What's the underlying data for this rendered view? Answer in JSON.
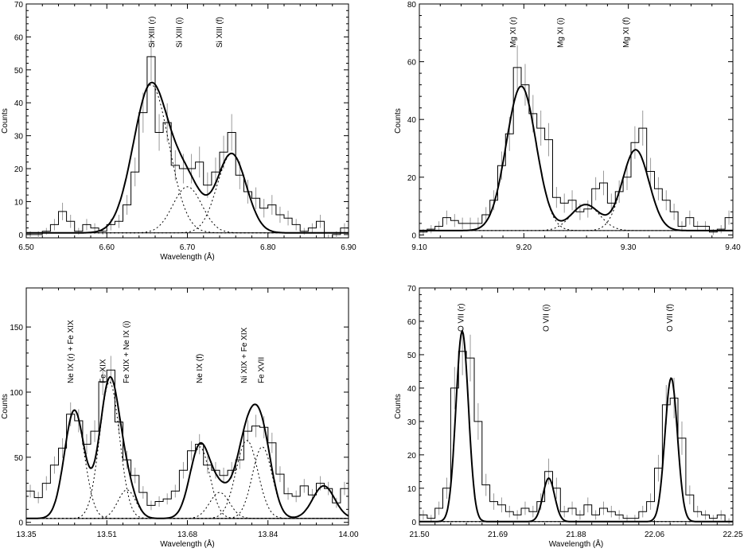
{
  "chart_data": [
    {
      "type": "line",
      "xlabel": "Wavelength (Å)",
      "ylabel": "Counts",
      "xlim": [
        6.5,
        6.9
      ],
      "ylim": [
        -1,
        70
      ],
      "xticks": [
        "6.50",
        "6.60",
        "6.70",
        "6.80",
        "6.90"
      ],
      "yticks": [
        "0",
        "10",
        "20",
        "30",
        "40",
        "50",
        "60",
        "70"
      ],
      "baseline": 0.5,
      "line_labels": [
        {
          "text": "Si XIII (r)",
          "x": 6.656
        },
        {
          "text": "Si XIII (i)",
          "x": 6.69
        },
        {
          "text": "Si XIII (f)",
          "x": 6.74
        }
      ],
      "components": [
        {
          "center": 6.655,
          "amp": 45,
          "width": 0.022
        },
        {
          "center": 6.7,
          "amp": 14,
          "width": 0.018
        },
        {
          "center": 6.755,
          "amp": 24,
          "width": 0.018
        }
      ],
      "histogram": {
        "edges": [
          6.5,
          6.51,
          6.52,
          6.53,
          6.54,
          6.55,
          6.56,
          6.57,
          6.58,
          6.59,
          6.6,
          6.61,
          6.62,
          6.63,
          6.64,
          6.65,
          6.66,
          6.67,
          6.68,
          6.69,
          6.7,
          6.71,
          6.72,
          6.73,
          6.74,
          6.75,
          6.76,
          6.77,
          6.78,
          6.79,
          6.8,
          6.81,
          6.82,
          6.83,
          6.84,
          6.85,
          6.86,
          6.87,
          6.88,
          6.89,
          6.9
        ],
        "values": [
          0,
          0,
          1,
          3,
          7,
          4,
          1,
          3,
          2,
          1,
          3,
          4,
          9,
          19,
          37,
          54,
          31,
          34,
          21,
          20,
          20,
          22,
          15,
          19,
          25,
          31,
          18,
          13,
          11,
          8,
          9,
          6,
          5,
          3,
          1,
          2,
          4,
          -1,
          0,
          2
        ]
      }
    },
    {
      "type": "line",
      "xlabel": "",
      "ylabel": "Counts",
      "xlim": [
        9.05,
        9.45
      ],
      "ylim": [
        -1,
        80
      ],
      "xticks": [
        "9.10",
        "9.20",
        "9.30",
        "9.40"
      ],
      "yticks": [
        "0",
        "20",
        "40",
        "60",
        "80"
      ],
      "baseline": 1.5,
      "line_labels": [
        {
          "text": "Mg XI (r)",
          "x": 9.17
        },
        {
          "text": "Mg XI (i)",
          "x": 9.23
        },
        {
          "text": "Mg XI (f)",
          "x": 9.314
        }
      ],
      "components": [
        {
          "center": 9.18,
          "amp": 50,
          "width": 0.019
        },
        {
          "center": 9.262,
          "amp": 9,
          "width": 0.018
        },
        {
          "center": 9.326,
          "amp": 28,
          "width": 0.017
        }
      ],
      "histogram": {
        "edges": [
          9.05,
          9.06,
          9.07,
          9.08,
          9.09,
          9.1,
          9.11,
          9.12,
          9.13,
          9.14,
          9.15,
          9.16,
          9.17,
          9.18,
          9.19,
          9.2,
          9.21,
          9.22,
          9.23,
          9.24,
          9.25,
          9.26,
          9.27,
          9.28,
          9.29,
          9.3,
          9.31,
          9.32,
          9.33,
          9.34,
          9.35,
          9.36,
          9.37,
          9.38,
          9.39,
          9.4,
          9.41,
          9.42,
          9.43,
          9.44,
          9.45
        ],
        "values": [
          1,
          2,
          3,
          6,
          5,
          4,
          4,
          4,
          7,
          12,
          24,
          35,
          58,
          52,
          42,
          37,
          33,
          13,
          11,
          12,
          8,
          9,
          16,
          18,
          11,
          15,
          20,
          32,
          37,
          22,
          16,
          12,
          8,
          3,
          6,
          3,
          3,
          1,
          2,
          6
        ]
      }
    },
    {
      "type": "line",
      "xlabel": "Wavelength (Å)",
      "ylabel": "Counts",
      "xlim": [
        13.35,
        14.0
      ],
      "ylim": [
        -2,
        180
      ],
      "xticks": [
        "13.35",
        "13.51",
        "13.68",
        "13.84",
        "14.00"
      ],
      "yticks": [
        "0",
        "50",
        "100",
        "150"
      ],
      "baseline": 3,
      "line_labels": [
        {
          "text": "Ne IX (r) + Fe XIX",
          "x": 13.44
        },
        {
          "text": "Fe XIX",
          "x": 13.505
        },
        {
          "text": "Fe XIX + Ne IX (i)",
          "x": 13.552
        },
        {
          "text": "Ne IX (f)",
          "x": 13.7
        },
        {
          "text": "Ni XIX + Fe XIX",
          "x": 13.79
        },
        {
          "text": "Fe XVII",
          "x": 13.824
        }
      ],
      "components": [
        {
          "center": 13.447,
          "amp": 83,
          "width": 0.02
        },
        {
          "center": 13.518,
          "amp": 105,
          "width": 0.02
        },
        {
          "center": 13.553,
          "amp": 22,
          "width": 0.018
        },
        {
          "center": 13.7,
          "amp": 55,
          "width": 0.02
        },
        {
          "center": 13.74,
          "amp": 20,
          "width": 0.02
        },
        {
          "center": 13.795,
          "amp": 60,
          "width": 0.022
        },
        {
          "center": 13.826,
          "amp": 55,
          "width": 0.02
        },
        {
          "center": 13.95,
          "amp": 25,
          "width": 0.022
        }
      ],
      "histogram": {
        "edges": [
          13.35,
          13.36625,
          13.3825,
          13.39875,
          13.415,
          13.43125,
          13.4475,
          13.46375,
          13.48,
          13.49625,
          13.5125,
          13.52875,
          13.545,
          13.56125,
          13.5775,
          13.59375,
          13.61,
          13.62625,
          13.6425,
          13.65875,
          13.675,
          13.69125,
          13.7075,
          13.72375,
          13.74,
          13.75625,
          13.7725,
          13.78875,
          13.805,
          13.82125,
          13.8375,
          13.85375,
          13.87,
          13.88625,
          13.9025,
          13.91875,
          13.935,
          13.95125,
          13.9675,
          13.98375,
          14.0
        ],
        "values": [
          24,
          19,
          30,
          44,
          57,
          83,
          78,
          60,
          70,
          108,
          117,
          77,
          48,
          36,
          23,
          13,
          16,
          18,
          24,
          40,
          55,
          60,
          44,
          40,
          36,
          40,
          48,
          70,
          74,
          73,
          61,
          37,
          22,
          20,
          28,
          21,
          30,
          26,
          15,
          26
        ]
      }
    },
    {
      "type": "line",
      "xlabel": "Wavelength (Å)",
      "ylabel": "Counts",
      "xlim": [
        21.5,
        22.25
      ],
      "ylim": [
        -1,
        70
      ],
      "xticks": [
        "21.50",
        "21.69",
        "21.88",
        "22.06",
        "22.25"
      ],
      "yticks": [
        "0",
        "10",
        "20",
        "30",
        "40",
        "50",
        "60",
        "70"
      ],
      "baseline": 0,
      "line_labels": [
        {
          "text": "O VII (r)",
          "x": 21.6
        },
        {
          "text": "O VII (i)",
          "x": 21.804
        },
        {
          "text": "O VII (f)",
          "x": 22.1
        }
      ],
      "components": [
        {
          "center": 21.6025,
          "amp": 57,
          "width": 0.015
        },
        {
          "center": 21.8095,
          "amp": 13,
          "width": 0.014
        },
        {
          "center": 22.1025,
          "amp": 43,
          "width": 0.015
        }
      ],
      "histogram": {
        "edges": [
          21.5,
          21.51875,
          21.5375,
          21.55625,
          21.575,
          21.59375,
          21.6125,
          21.63125,
          21.65,
          21.66875,
          21.6875,
          21.70625,
          21.725,
          21.74375,
          21.7625,
          21.78125,
          21.8,
          21.81875,
          21.8375,
          21.85625,
          21.875,
          21.89375,
          21.9125,
          21.93125,
          21.95,
          21.96875,
          21.9875,
          22.00625,
          22.025,
          22.04375,
          22.0625,
          22.08125,
          22.1,
          22.11875,
          22.1375,
          22.15625,
          22.175,
          22.19375,
          22.2125,
          22.23125,
          22.25
        ],
        "values": [
          2,
          1,
          4,
          10,
          40,
          51,
          49,
          30,
          11,
          6,
          5,
          3,
          2,
          4,
          3,
          6,
          15,
          10,
          3,
          4,
          2,
          5,
          2,
          4,
          3,
          2,
          1,
          1,
          3,
          6,
          16,
          35,
          37,
          25,
          8,
          3,
          2,
          1,
          2,
          0
        ]
      }
    }
  ]
}
